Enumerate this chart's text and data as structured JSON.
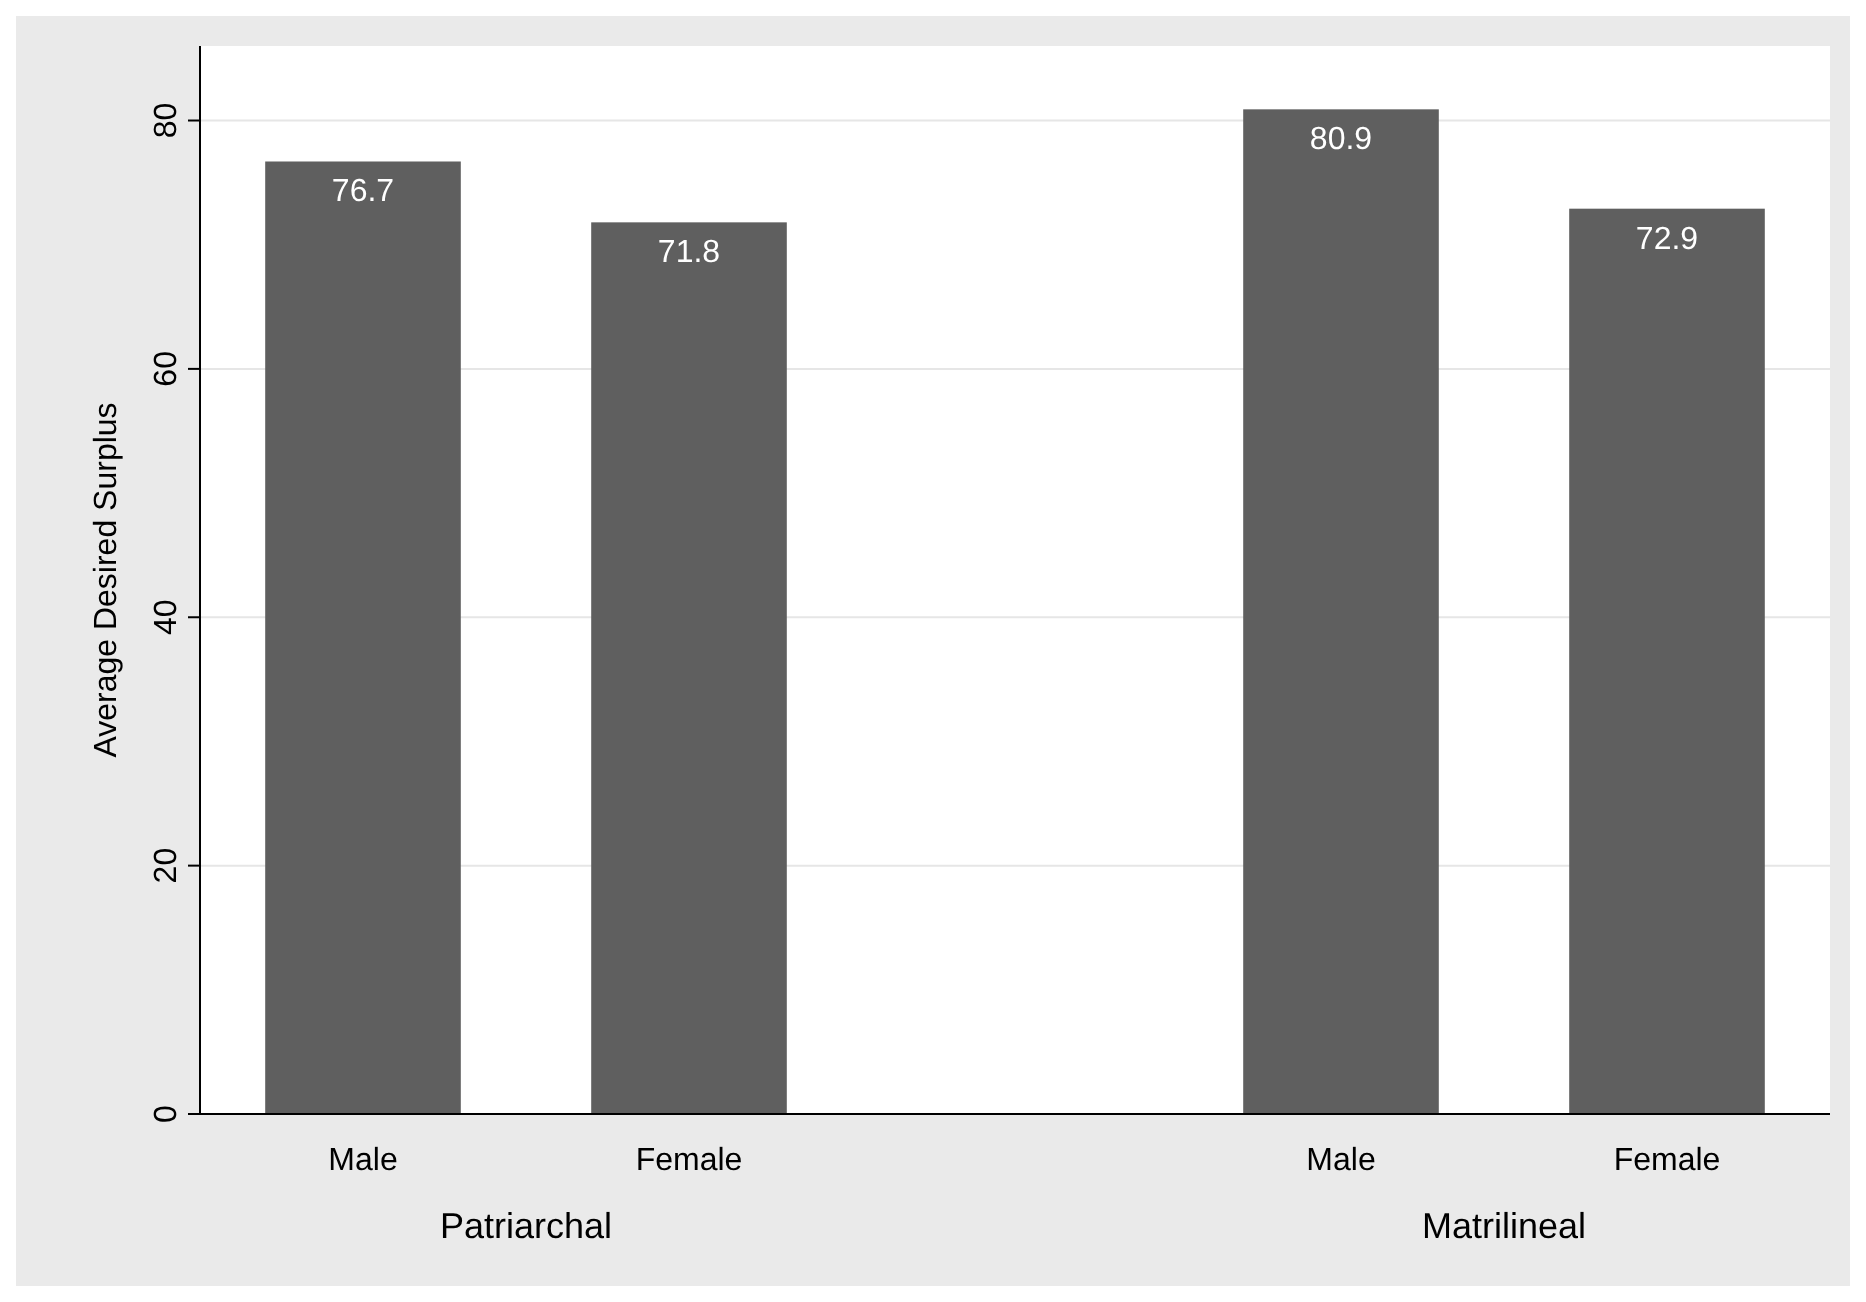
{
  "chart_data": {
    "type": "bar",
    "ylabel": "Average Desired Surplus",
    "categories": [
      "Male",
      "Female",
      null,
      "Male",
      "Female"
    ],
    "values": [
      76.7,
      71.8,
      null,
      80.9,
      72.9
    ],
    "color": "#5f5f5f",
    "ylim": [
      0,
      86
    ],
    "yticks": [
      0,
      20,
      40,
      60,
      80
    ],
    "grid": "y",
    "data_labels": true,
    "annotations": [
      "Patriarchal",
      "Matrilineal"
    ]
  }
}
